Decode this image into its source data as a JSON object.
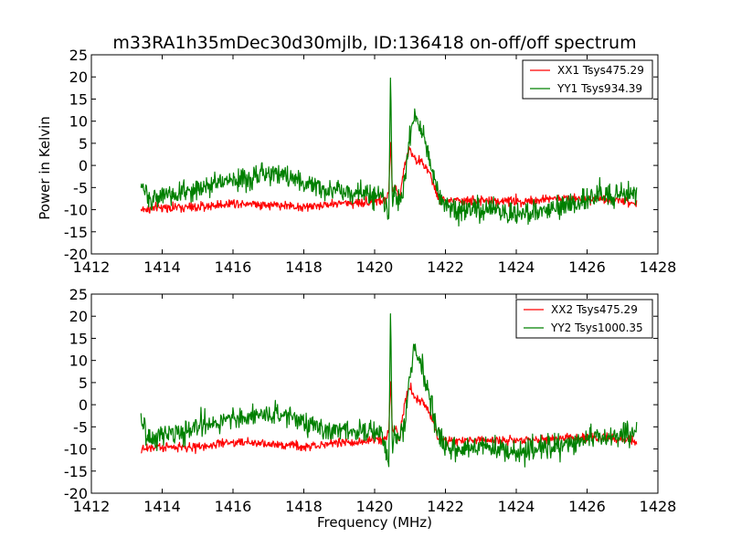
{
  "chart_data": {
    "title": "m33RA1h35mDec30d30mjlb, ID:136418 on-off/off spectrum",
    "ylabel": "Power in Kelvin",
    "xlabel": "Frequency (MHz)",
    "colors": {
      "xx": "#ff0000",
      "yy": "#008000"
    },
    "panels": [
      {
        "type": "line",
        "xlim": [
          1412,
          1428
        ],
        "ylim": [
          -20,
          25
        ],
        "xticks": [
          1412,
          1414,
          1416,
          1418,
          1420,
          1422,
          1424,
          1426,
          1428
        ],
        "yticks": [
          -20,
          -15,
          -10,
          -5,
          0,
          5,
          10,
          15,
          20,
          25
        ],
        "legend": "top-right",
        "series": [
          {
            "name": "XX1 Tsys475.29",
            "color": "#ff0000",
            "x": [
              1413.4,
              1414.0,
              1414.5,
              1415.0,
              1415.5,
              1416.0,
              1416.5,
              1417.0,
              1417.5,
              1418.0,
              1418.5,
              1419.0,
              1419.5,
              1420.0,
              1420.3,
              1420.4,
              1420.45,
              1420.5,
              1420.6,
              1420.7,
              1420.8,
              1420.9,
              1421.0,
              1421.1,
              1421.2,
              1421.3,
              1421.4,
              1421.5,
              1421.6,
              1421.7,
              1421.8,
              1422.0,
              1422.5,
              1423.0,
              1423.5,
              1424.0,
              1424.5,
              1425.0,
              1425.5,
              1426.0,
              1426.5,
              1427.0,
              1427.4
            ],
            "y": [
              -10,
              -9.5,
              -9.5,
              -9.5,
              -9,
              -8.5,
              -8.5,
              -9,
              -9,
              -9.5,
              -9,
              -8.5,
              -8.5,
              -8,
              -8,
              -6,
              6,
              -6,
              -5,
              -8,
              -2,
              2,
              4,
              2,
              1,
              1,
              0,
              -1,
              -3,
              -5,
              -8,
              -8,
              -8,
              -8,
              -8,
              -8,
              -8,
              -7.5,
              -7.5,
              -7.5,
              -7.5,
              -8,
              -8.5
            ]
          },
          {
            "name": "YY1 Tsys934.39",
            "color": "#008000",
            "x": [
              1413.4,
              1413.7,
              1414.0,
              1414.3,
              1414.6,
              1415.0,
              1415.3,
              1415.6,
              1416.0,
              1416.3,
              1416.6,
              1417.0,
              1417.3,
              1417.6,
              1418.0,
              1418.3,
              1418.6,
              1419.0,
              1419.3,
              1419.6,
              1420.0,
              1420.2,
              1420.3,
              1420.4,
              1420.45,
              1420.5,
              1420.55,
              1420.6,
              1420.7,
              1420.8,
              1420.9,
              1421.0,
              1421.1,
              1421.2,
              1421.3,
              1421.4,
              1421.5,
              1421.6,
              1421.7,
              1421.8,
              1422.0,
              1422.3,
              1422.6,
              1423.0,
              1423.3,
              1423.6,
              1424.0,
              1424.3,
              1424.6,
              1425.0,
              1425.3,
              1425.6,
              1426.0,
              1426.3,
              1426.6,
              1427.0,
              1427.4
            ],
            "y": [
              -5,
              -8,
              -6,
              -7,
              -6,
              -5,
              -4,
              -4,
              -3,
              -3,
              -2.5,
              -2,
              -2,
              -2.5,
              -4,
              -5,
              -5.5,
              -5.5,
              -6,
              -6,
              -6.5,
              -7,
              -8,
              -12,
              22,
              -10,
              -6,
              -7,
              -8,
              -6,
              0,
              6,
              12,
              10,
              8,
              6,
              3,
              0,
              -4,
              -7,
              -9,
              -10,
              -10,
              -10,
              -9.5,
              -10.5,
              -11,
              -10.5,
              -10,
              -9.5,
              -9,
              -9,
              -7.5,
              -7,
              -7,
              -7,
              -6
            ]
          }
        ]
      },
      {
        "type": "line",
        "xlim": [
          1412,
          1428
        ],
        "ylim": [
          -20,
          25
        ],
        "xticks": [
          1412,
          1414,
          1416,
          1418,
          1420,
          1422,
          1424,
          1426,
          1428
        ],
        "yticks": [
          -20,
          -15,
          -10,
          -5,
          0,
          5,
          10,
          15,
          20,
          25
        ],
        "legend": "top-right",
        "series": [
          {
            "name": "XX2 Tsys475.29",
            "color": "#ff0000",
            "x": [
              1413.4,
              1414.0,
              1414.5,
              1415.0,
              1415.5,
              1416.0,
              1416.5,
              1417.0,
              1417.5,
              1418.0,
              1418.5,
              1419.0,
              1419.5,
              1420.0,
              1420.3,
              1420.4,
              1420.45,
              1420.5,
              1420.6,
              1420.7,
              1420.8,
              1420.9,
              1421.0,
              1421.1,
              1421.2,
              1421.3,
              1421.4,
              1421.5,
              1421.6,
              1421.7,
              1421.8,
              1422.0,
              1422.5,
              1423.0,
              1423.5,
              1424.0,
              1424.5,
              1425.0,
              1425.5,
              1426.0,
              1426.5,
              1427.0,
              1427.4
            ],
            "y": [
              -10,
              -9.5,
              -9.5,
              -9.5,
              -9,
              -8.5,
              -8.5,
              -9,
              -9,
              -9.5,
              -9,
              -8.5,
              -8.5,
              -8,
              -8,
              -6,
              6,
              -6,
              -5,
              -8,
              -2,
              2,
              4,
              2,
              1,
              1,
              0,
              -1,
              -3,
              -5,
              -8,
              -8,
              -8,
              -8,
              -8,
              -8,
              -8,
              -7.5,
              -7.5,
              -7.5,
              -7.5,
              -8,
              -8.5
            ]
          },
          {
            "name": "YY2 Tsys1000.35",
            "color": "#008000",
            "x": [
              1413.4,
              1413.7,
              1414.0,
              1414.3,
              1414.6,
              1415.0,
              1415.3,
              1415.6,
              1416.0,
              1416.3,
              1416.6,
              1417.0,
              1417.3,
              1417.6,
              1418.0,
              1418.3,
              1418.6,
              1419.0,
              1419.3,
              1419.6,
              1420.0,
              1420.2,
              1420.3,
              1420.4,
              1420.45,
              1420.5,
              1420.55,
              1420.6,
              1420.7,
              1420.8,
              1420.9,
              1421.0,
              1421.1,
              1421.2,
              1421.3,
              1421.4,
              1421.5,
              1421.6,
              1421.7,
              1421.8,
              1422.0,
              1422.3,
              1422.6,
              1423.0,
              1423.3,
              1423.6,
              1424.0,
              1424.3,
              1424.6,
              1425.0,
              1425.3,
              1425.6,
              1426.0,
              1426.3,
              1426.6,
              1427.0,
              1427.4
            ],
            "y": [
              -5,
              -8,
              -6,
              -7,
              -6,
              -5,
              -4,
              -4,
              -3,
              -3,
              -2.5,
              -2,
              -2,
              -2.5,
              -4,
              -5,
              -5.5,
              -5.5,
              -6,
              -6,
              -6.5,
              -7,
              -8,
              -14,
              23,
              -12,
              -6,
              -7,
              -8,
              -6,
              0,
              7,
              13,
              11,
              9,
              6,
              3,
              0,
              -4,
              -7,
              -9,
              -10,
              -10,
              -10,
              -9.5,
              -10.5,
              -11,
              -10.5,
              -10,
              -9.5,
              -9,
              -9,
              -7.5,
              -7,
              -7,
              -7,
              -6
            ]
          }
        ]
      }
    ]
  }
}
